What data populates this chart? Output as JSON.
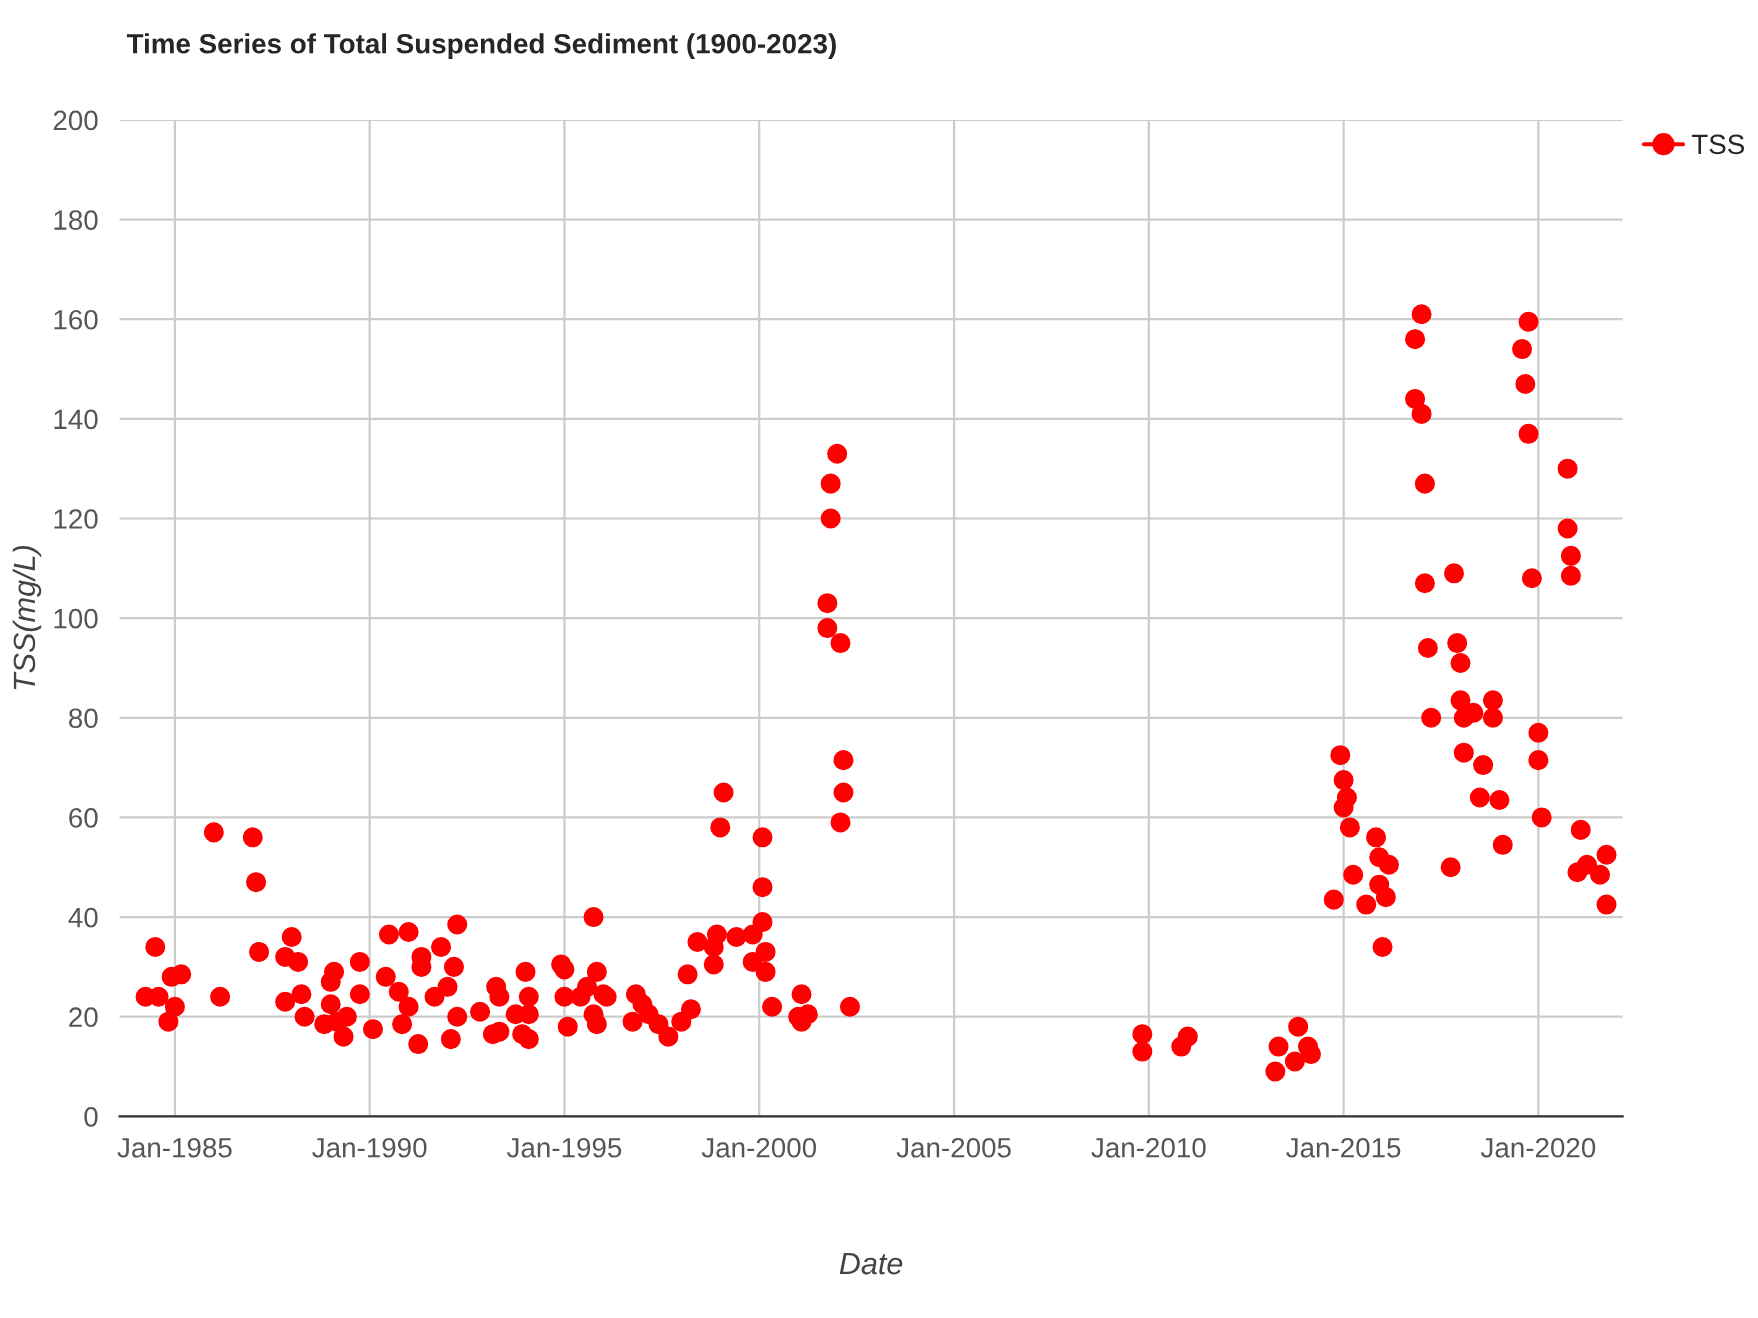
{
  "chart_data": {
    "type": "scatter",
    "title": "Time Series of Total Suspended Sediment (1900-2023)",
    "xlabel": "Date",
    "ylabel": "TSS(mg/L)",
    "xlim": [
      "1983-08",
      "2022-03"
    ],
    "ylim": [
      0,
      200
    ],
    "xticks": [
      {
        "value": "1985-01",
        "label": "Jan-1985"
      },
      {
        "value": "1990-01",
        "label": "Jan-1990"
      },
      {
        "value": "1995-01",
        "label": "Jan-1995"
      },
      {
        "value": "2000-01",
        "label": "Jan-2000"
      },
      {
        "value": "2005-01",
        "label": "Jan-2005"
      },
      {
        "value": "2010-01",
        "label": "Jan-2010"
      },
      {
        "value": "2015-01",
        "label": "Jan-2015"
      },
      {
        "value": "2020-01",
        "label": "Jan-2020"
      }
    ],
    "yticks": [
      0,
      20,
      40,
      60,
      80,
      100,
      120,
      140,
      160,
      180,
      200
    ],
    "grid": true,
    "legend": "top right",
    "marker": "circle",
    "series": [
      {
        "name": "TSS",
        "color": "#ff0000",
        "x": [
          "1984-04",
          "1984-07",
          "1984-08",
          "1984-11",
          "1985-01",
          "1984-12",
          "1985-03",
          "1986-01",
          "1986-03",
          "1987-01",
          "1987-02",
          "1987-03",
          "1988-01",
          "1987-11",
          "1988-03",
          "1987-11",
          "1988-04",
          "1988-05",
          "1988-11",
          "1989-01",
          "1989-02",
          "1989-01",
          "1989-03",
          "1989-05",
          "1989-06",
          "1989-10",
          "1989-10",
          "1990-02",
          "1990-07",
          "1990-06",
          "1990-10",
          "1990-11",
          "1991-01",
          "1991-01",
          "1991-04",
          "1991-05",
          "1991-05",
          "1991-09",
          "1991-11",
          "1992-01",
          "1992-03",
          "1992-04",
          "1992-04",
          "1992-02",
          "1992-11",
          "1993-03",
          "1993-04",
          "1993-05",
          "1993-05",
          "1993-10",
          "1993-12",
          "1994-01",
          "1994-02",
          "1994-02",
          "1994-02",
          "1994-12",
          "1995-01",
          "1995-01",
          "1995-02",
          "1995-06",
          "1995-08",
          "1995-10",
          "1995-11",
          "1995-10",
          "1995-11",
          "1996-01",
          "1996-02",
          "1996-10",
          "1996-11",
          "1997-01",
          "1997-03",
          "1997-06",
          "1997-09",
          "1998-01",
          "1998-04",
          "1998-03",
          "1998-06",
          "1998-11",
          "1998-11",
          "1998-12",
          "1999-01",
          "1999-02",
          "1999-06",
          "1999-11",
          "1999-11",
          "2000-02",
          "2000-02",
          "2000-02",
          "2000-03",
          "2000-03",
          "2000-05",
          "2001-01",
          "2001-02",
          "2001-04",
          "2001-02",
          "2001-10",
          "2001-10",
          "2001-11",
          "2001-11",
          "2002-01",
          "2002-02",
          "2002-03",
          "2002-03",
          "2002-02",
          "2002-05",
          "2009-11",
          "2009-11",
          "2010-11",
          "2011-01",
          "2013-04",
          "2013-05",
          "2013-10",
          "2013-11",
          "2014-03",
          "2014-02",
          "2014-12",
          "2015-01",
          "2015-02",
          "2015-01",
          "2015-03",
          "2014-10",
          "2015-04",
          "2015-08",
          "2015-11",
          "2015-12",
          "2016-03",
          "2015-12",
          "2016-02",
          "2016-01",
          "2017-01",
          "2016-11",
          "2016-11",
          "2017-01",
          "2017-02",
          "2017-02",
          "2017-03",
          "2017-04",
          "2017-10",
          "2017-11",
          "2017-12",
          "2018-01",
          "2018-01",
          "2018-02",
          "2018-05",
          "2018-02",
          "2018-08",
          "2018-07",
          "2018-11",
          "2018-11",
          "2019-01",
          "2019-02",
          "2019-10",
          "2019-08",
          "2019-09",
          "2019-10",
          "2019-11",
          "2020-01",
          "2020-01",
          "2020-02",
          "2020-10",
          "2020-10",
          "2020-11",
          "2020-11",
          "2021-02",
          "2021-01",
          "2021-04",
          "2021-08",
          "2021-10",
          "2021-10"
        ],
        "values": [
          24,
          34,
          24,
          19,
          22,
          28,
          28.5,
          57,
          24,
          56,
          47,
          33,
          36,
          32,
          31,
          23,
          24.5,
          20,
          18.5,
          27,
          29,
          22.5,
          19,
          16,
          20,
          31,
          24.5,
          17.5,
          36.5,
          28,
          25,
          18.5,
          22,
          37,
          14.5,
          30,
          32,
          24,
          34,
          26,
          30,
          38.5,
          20,
          15.5,
          21,
          16.5,
          26,
          24,
          17,
          20.5,
          16.5,
          29,
          24,
          20.5,
          15.5,
          30.5,
          29.5,
          24,
          18,
          24,
          26,
          40,
          29,
          20.5,
          18.5,
          24.5,
          24,
          19,
          24.5,
          22.5,
          20.5,
          18.5,
          16,
          19,
          21.5,
          28.5,
          35,
          30.5,
          34,
          36.5,
          58,
          65,
          36,
          31,
          36.5,
          39,
          46,
          56,
          29,
          33,
          22,
          20,
          24.5,
          20.5,
          19,
          103,
          98,
          127,
          120,
          133,
          95,
          71.5,
          65,
          59,
          22,
          16.5,
          13,
          14,
          16,
          9,
          14,
          11,
          18,
          12.5,
          14,
          72.5,
          67.5,
          64,
          62,
          58,
          43.5,
          48.5,
          42.5,
          56,
          52,
          50.5,
          46.5,
          44,
          34,
          161,
          156,
          144,
          141,
          127,
          107,
          94,
          80,
          50,
          109,
          95,
          91,
          83.5,
          80,
          81,
          73,
          70.5,
          64,
          83.5,
          80,
          63.5,
          54.5,
          159.5,
          154,
          147,
          137,
          108,
          77,
          71.5,
          60,
          130,
          118,
          112.5,
          108.5,
          57.5,
          49,
          50.5,
          48.5,
          52.5,
          42.5
        ]
      }
    ]
  }
}
